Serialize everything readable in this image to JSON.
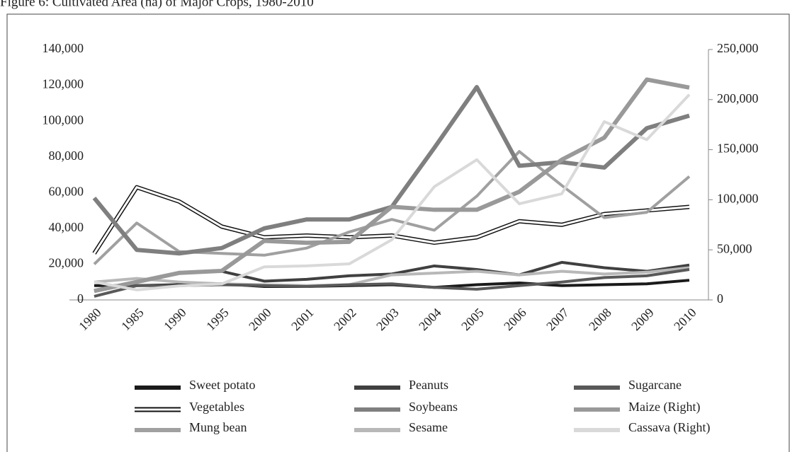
{
  "chart_data": {
    "type": "line",
    "title": "Figure 6: Cultivated Area (ha) of Major Crops, 1980-2010",
    "categories": [
      "1980",
      "1985",
      "1990",
      "1995",
      "2000",
      "2001",
      "2002",
      "2003",
      "2004",
      "2005",
      "2006",
      "2007",
      "2008",
      "2009",
      "2010"
    ],
    "ylim": [
      0,
      140000
    ],
    "yticks": [
      0,
      {
        "value": 20000,
        "label": "20,000"
      },
      {
        "value": 40000,
        "label": "40,000"
      },
      {
        "value": 60000,
        "label": "60,000"
      },
      {
        "value": 80000,
        "label": "80,000"
      },
      {
        "value": 100000,
        "label": "100,000"
      },
      {
        "value": 120000,
        "label": "120,000"
      },
      {
        "value": 140000,
        "label": "140,000"
      }
    ],
    "y2lim": [
      0,
      250000
    ],
    "y2ticks": [
      0,
      {
        "value": 50000,
        "label": "50,000"
      },
      {
        "value": 100000,
        "label": "100,000"
      },
      {
        "value": 150000,
        "label": "150,000"
      },
      {
        "value": 200000,
        "label": "200,000"
      },
      {
        "value": 250000,
        "label": "250,000"
      }
    ],
    "series": [
      {
        "name": "Sweet potato",
        "color": "#1a1a1a",
        "values": [
          8000,
          8000,
          8500,
          9000,
          7500,
          7500,
          8000,
          8500,
          7000,
          8500,
          9500,
          8000,
          8500,
          9000,
          11000
        ]
      },
      {
        "name": "Vegetables",
        "color": "#ffffff",
        "values": [
          26000,
          63000,
          55000,
          41000,
          35000,
          36000,
          35000,
          36000,
          32000,
          35000,
          44000,
          42000,
          48000,
          50000,
          52000
        ]
      },
      {
        "name": "Mung bean",
        "color": "#a0a0a0",
        "values": [
          20000,
          43000,
          27000,
          26000,
          25000,
          29000,
          38000,
          45000,
          39000,
          58000,
          83000,
          64000,
          46000,
          49000,
          69000
        ]
      },
      {
        "name": "Peanuts",
        "color": "#404040",
        "values": [
          5000,
          10000,
          15000,
          16000,
          10500,
          11500,
          13500,
          14500,
          19000,
          17000,
          14000,
          21000,
          18000,
          16000,
          19500
        ]
      },
      {
        "name": "Soybeans",
        "color": "#7f7f7f",
        "values": [
          57000,
          28000,
          26000,
          29000,
          40000,
          45000,
          45000,
          52000,
          85000,
          119000,
          75000,
          77000,
          74000,
          96000,
          103000
        ]
      },
      {
        "name": "Sesame",
        "color": "#b8b8b8",
        "values": [
          10000,
          12000,
          10000,
          9000,
          8500,
          8000,
          8500,
          14000,
          15000,
          16000,
          14000,
          16000,
          14500,
          15500,
          18000
        ]
      },
      {
        "name": "Sugarcane",
        "color": "#595959",
        "values": [
          2000,
          8000,
          8000,
          8500,
          8000,
          7500,
          8500,
          9000,
          7000,
          6000,
          8000,
          10000,
          12500,
          13500,
          17000
        ]
      },
      {
        "name": "Maize (Right)",
        "color": "#999999",
        "axis": "y2",
        "values": [
          9000,
          18000,
          27000,
          29000,
          59000,
          57000,
          58000,
          93000,
          90000,
          90000,
          108000,
          140000,
          162000,
          220000,
          212000
        ]
      },
      {
        "name": "Cassava (Right)",
        "color": "#d9d9d9",
        "axis": "y2",
        "values": [
          18000,
          10000,
          14000,
          16000,
          33000,
          34000,
          36000,
          60000,
          113000,
          140000,
          96000,
          106000,
          178000,
          160000,
          205000
        ]
      }
    ]
  }
}
